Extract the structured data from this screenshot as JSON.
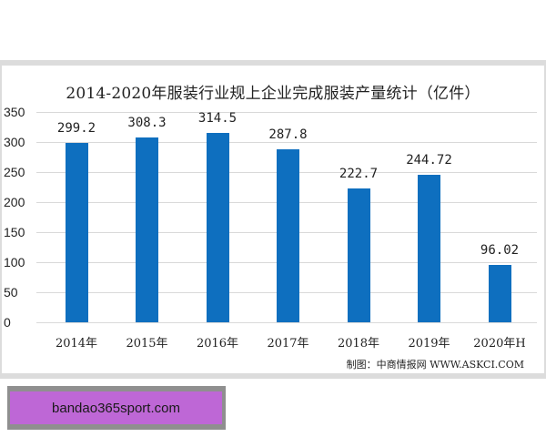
{
  "chart_data": {
    "type": "bar",
    "title": "2014-2020年服装行业规上企业完成服装产量统计（亿件）",
    "categories": [
      "2014年",
      "2015年",
      "2016年",
      "2017年",
      "2018年",
      "2019年",
      "2020年H"
    ],
    "values": [
      299.2,
      308.3,
      314.5,
      287.8,
      222.7,
      244.72,
      96.02
    ],
    "value_labels": [
      "299.2",
      "308.3",
      "314.5",
      "287.8",
      "222.7",
      "244.72",
      "96.02"
    ],
    "xlabel": "",
    "ylabel": "",
    "ylim": [
      0,
      350
    ],
    "yticks": [
      "0",
      "50",
      "100",
      "150",
      "200",
      "250",
      "300",
      "350"
    ],
    "grid": true,
    "legend": "none",
    "bar_color": "#0e6fbf"
  },
  "source": "制图：中商情报网 WWW.ASKCI.COM",
  "banner": {
    "text": "bandao365sport.com"
  }
}
